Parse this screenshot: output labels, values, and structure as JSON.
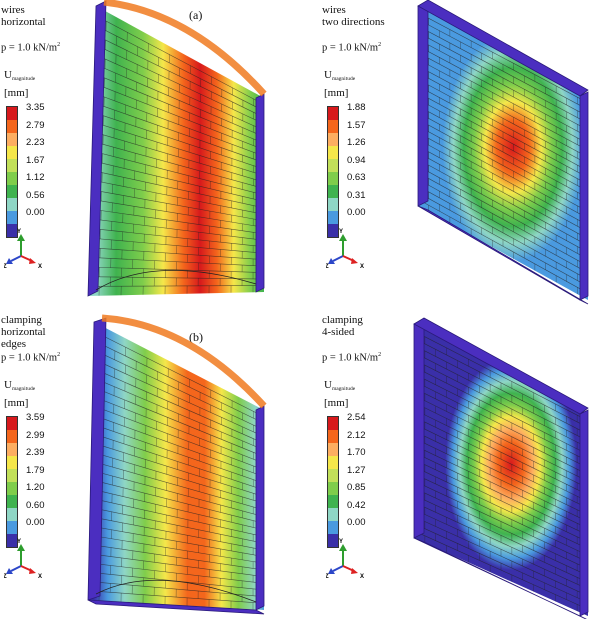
{
  "colors": [
    "#d7191c",
    "#f4661c",
    "#fdae61",
    "#f5e74a",
    "#c2e05a",
    "#7fcd4b",
    "#3fb34f",
    "#8fd6c5",
    "#4a9ae0",
    "#3a2fa8"
  ],
  "panels": [
    {
      "title": "wires\nhorizontal",
      "load": "p = 1.0 kN/m",
      "load_sup": "2",
      "umag": "U",
      "umag_sub": "magnitude",
      "unit": "[mm]",
      "ticks": [
        "3.35",
        "2.79",
        "2.23",
        "1.67",
        "1.12",
        "0.56",
        "0.00"
      ],
      "tag": "(a)",
      "pattern": "horizontal"
    },
    {
      "title": "wires\ntwo directions",
      "load": "p = 1.0 kN/m",
      "load_sup": "2",
      "umag": "U",
      "umag_sub": "magnitude",
      "unit": "[mm]",
      "ticks": [
        "1.88",
        "1.57",
        "1.26",
        "0.94",
        "0.63",
        "0.31",
        "0.00"
      ],
      "tag": "",
      "pattern": "ellipse"
    },
    {
      "title": "clamping\nhorizontal\nedges",
      "load": "p = 1.0 kN/m",
      "load_sup": "2",
      "umag": "U",
      "umag_sub": "magnitude",
      "unit": "[mm]",
      "ticks": [
        "3.59",
        "2.99",
        "2.39",
        "1.79",
        "1.20",
        "0.60",
        "0.00"
      ],
      "tag": "(b)",
      "pattern": "vertical-bands"
    },
    {
      "title": "clamping\n4-sided",
      "load": "p = 1.0 kN/m",
      "load_sup": "2",
      "umag": "U",
      "umag_sub": "magnitude",
      "unit": "[mm]",
      "ticks": [
        "2.54",
        "2.12",
        "1.70",
        "1.27",
        "0.85",
        "0.42",
        "0.00"
      ],
      "tag": "",
      "pattern": "ellipse-tight"
    }
  ],
  "axes": {
    "y": "Y",
    "z": "Z",
    "x": "X"
  }
}
